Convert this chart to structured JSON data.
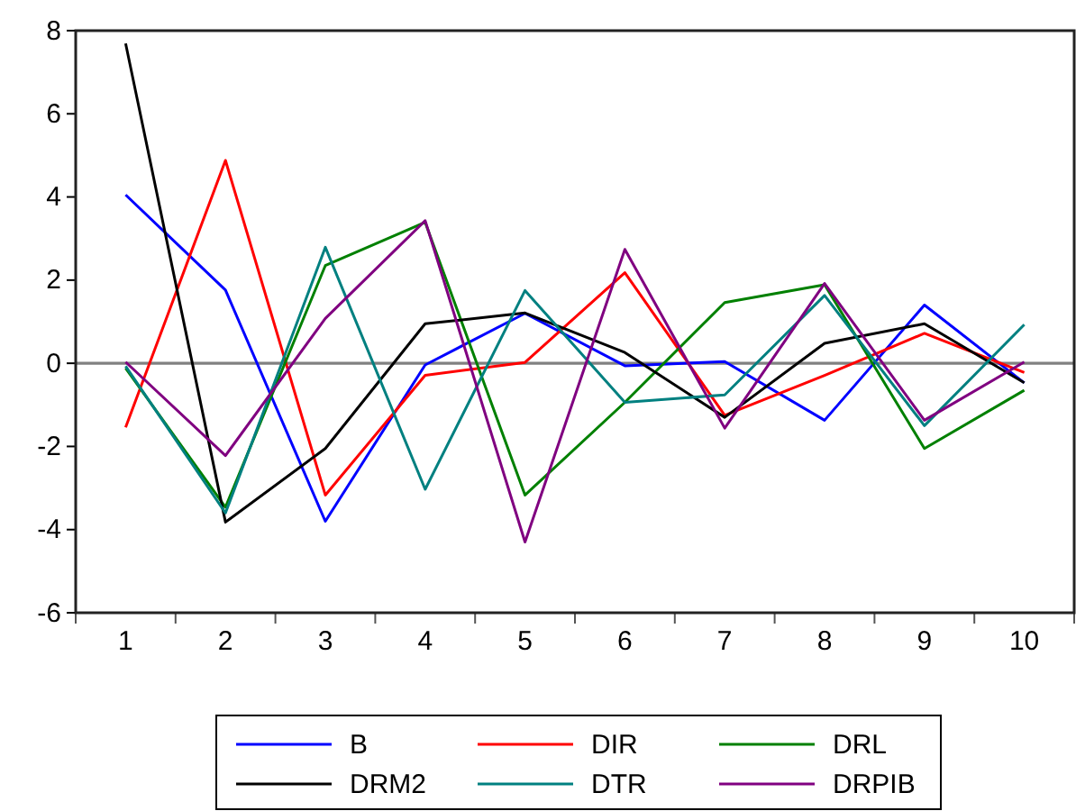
{
  "chart_data": {
    "type": "line",
    "categories": [
      "1",
      "2",
      "3",
      "4",
      "5",
      "6",
      "7",
      "8",
      "9",
      "10"
    ],
    "series": [
      {
        "name": "B",
        "color": "#0000ff",
        "values": [
          4.05,
          1.76,
          -3.8,
          -0.04,
          1.2,
          -0.06,
          0.04,
          -1.37,
          1.4,
          -0.47
        ]
      },
      {
        "name": "DIR",
        "color": "#ff0000",
        "values": [
          -1.54,
          4.88,
          -3.17,
          -0.29,
          0.02,
          2.18,
          -1.25,
          -0.29,
          0.72,
          -0.22
        ]
      },
      {
        "name": "DRL",
        "color": "#008000",
        "values": [
          -0.12,
          -3.46,
          2.35,
          3.39,
          -3.17,
          -0.94,
          1.46,
          1.89,
          -2.05,
          -0.65
        ]
      },
      {
        "name": "DRM2",
        "color": "#000000",
        "values": [
          7.69,
          -3.82,
          -2.05,
          0.95,
          1.21,
          0.26,
          -1.3,
          0.48,
          0.95,
          -0.47
        ]
      },
      {
        "name": "DTR",
        "color": "#008080",
        "values": [
          -0.07,
          -3.6,
          2.79,
          -3.03,
          1.75,
          -0.94,
          -0.76,
          1.63,
          -1.5,
          0.93
        ]
      },
      {
        "name": "DRPIB",
        "color": "#800080",
        "values": [
          0.03,
          -2.22,
          1.08,
          3.43,
          -4.3,
          2.74,
          -1.56,
          1.92,
          -1.37,
          0.03
        ]
      }
    ],
    "ylim": [
      -6,
      8
    ],
    "yticks": [
      -6,
      -4,
      -2,
      0,
      2,
      4,
      6,
      8
    ],
    "ref_lines": [
      {
        "axis": "y",
        "value": 0,
        "color": "#808080"
      }
    ],
    "legend": "bottom",
    "grid": false,
    "marker": "none",
    "line_style": "solid"
  }
}
